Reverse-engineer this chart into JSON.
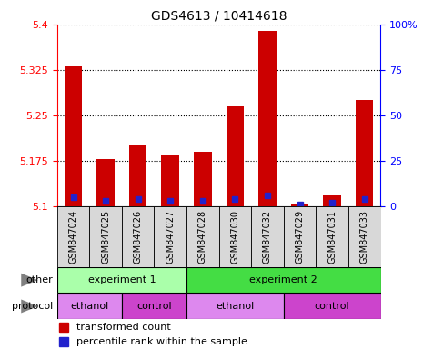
{
  "title": "GDS4613 / 10414618",
  "samples": [
    "GSM847024",
    "GSM847025",
    "GSM847026",
    "GSM847027",
    "GSM847028",
    "GSM847030",
    "GSM847032",
    "GSM847029",
    "GSM847031",
    "GSM847033"
  ],
  "red_values": [
    5.33,
    5.178,
    5.2,
    5.183,
    5.19,
    5.265,
    5.39,
    5.103,
    5.118,
    5.275
  ],
  "blue_pct": [
    5,
    3,
    4,
    3,
    3,
    4,
    6,
    1,
    2,
    4
  ],
  "y_min": 5.1,
  "y_max": 5.4,
  "y_ticks": [
    5.1,
    5.175,
    5.25,
    5.325,
    5.4
  ],
  "y_right_ticks": [
    0,
    25,
    50,
    75,
    100
  ],
  "bar_color": "#cc0000",
  "blue_color": "#2222cc",
  "experiment1_color": "#aaffaa",
  "experiment2_color": "#44dd44",
  "ethanol_color": "#dd88ee",
  "control_color": "#cc44cc",
  "label_other": "other",
  "label_protocol": "protocol",
  "exp1_label": "experiment 1",
  "exp2_label": "experiment 2",
  "eth1_label": "ethanol",
  "ctrl1_label": "control",
  "eth2_label": "ethanol",
  "ctrl2_label": "control",
  "legend_red": "transformed count",
  "legend_blue": "percentile rank within the sample",
  "experiment1_span": [
    0,
    3
  ],
  "experiment2_span": [
    4,
    9
  ],
  "ethanol1_span": [
    0,
    1
  ],
  "control1_span": [
    2,
    3
  ],
  "ethanol2_span": [
    4,
    6
  ],
  "control2_span": [
    7,
    9
  ],
  "gray_bg": "#d8d8d8"
}
